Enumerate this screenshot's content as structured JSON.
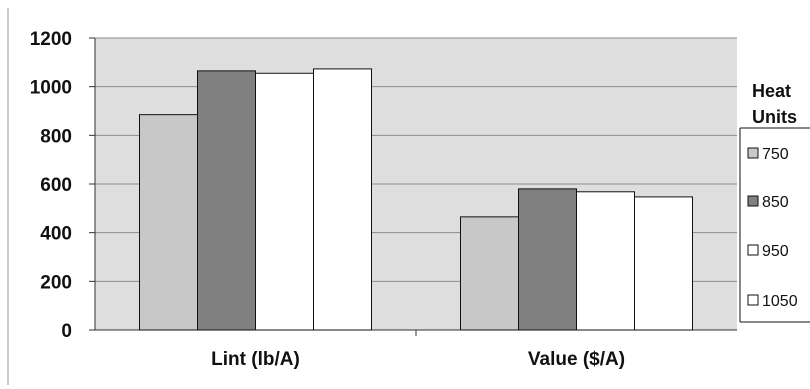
{
  "chart_data": {
    "type": "bar",
    "categories": [
      "Lint (lb/A)",
      "Value ($/A)"
    ],
    "series": [
      {
        "name": "750",
        "values": [
          885,
          465
        ],
        "color": "#c8c8c8"
      },
      {
        "name": "850",
        "values": [
          1065,
          580
        ],
        "color": "#808080"
      },
      {
        "name": "950",
        "values": [
          1055,
          568
        ],
        "color": "#ffffff"
      },
      {
        "name": "1050",
        "values": [
          1073,
          547
        ],
        "color": "#ffffff"
      }
    ],
    "legend": {
      "title_line1": "Heat",
      "title_line2": "Units",
      "position": "right"
    },
    "ylim": [
      0,
      1200
    ],
    "yticks": [
      0,
      200,
      400,
      600,
      800,
      1000,
      1200
    ],
    "grid": true,
    "plot_background": "#dedede",
    "title": "",
    "xlabel": "",
    "ylabel": ""
  }
}
